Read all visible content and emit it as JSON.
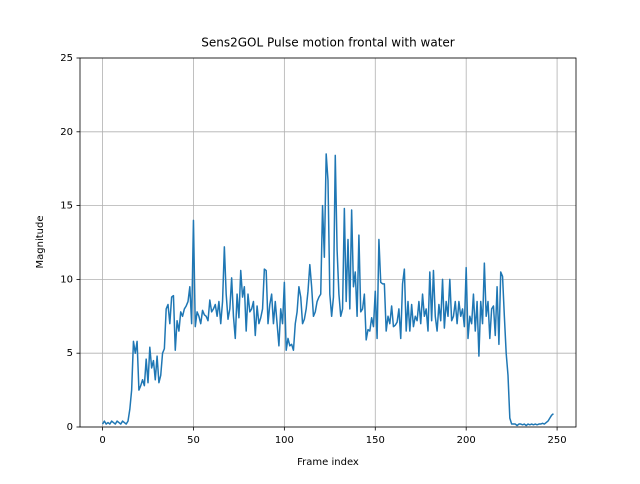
{
  "chart_data": {
    "type": "line",
    "title": "Sens2GOL Pulse motion frontal with water",
    "x_label": "Frame index",
    "y_label": "Magnitude",
    "xlim": [
      -12.4,
      260.4
    ],
    "xticks": [
      0,
      50,
      100,
      150,
      200,
      250
    ],
    "ylim": [
      0,
      25
    ],
    "yticks": [
      0,
      5,
      10,
      15,
      20,
      25
    ],
    "grid": true,
    "x": [
      0,
      1,
      2,
      3,
      4,
      5,
      6,
      7,
      8,
      9,
      10,
      11,
      12,
      13,
      14,
      15,
      16,
      17,
      18,
      19,
      20,
      21,
      22,
      23,
      24,
      25,
      26,
      27,
      28,
      29,
      30,
      31,
      32,
      33,
      34,
      35,
      36,
      37,
      38,
      39,
      40,
      41,
      42,
      43,
      44,
      45,
      46,
      47,
      48,
      49,
      50,
      51,
      52,
      53,
      54,
      55,
      56,
      57,
      58,
      59,
      60,
      61,
      62,
      63,
      64,
      65,
      66,
      67,
      68,
      69,
      70,
      71,
      72,
      73,
      74,
      75,
      76,
      77,
      78,
      79,
      80,
      81,
      82,
      83,
      84,
      85,
      86,
      87,
      88,
      89,
      90,
      91,
      92,
      93,
      94,
      95,
      96,
      97,
      98,
      99,
      100,
      101,
      102,
      103,
      104,
      105,
      106,
      107,
      108,
      109,
      110,
      111,
      112,
      113,
      114,
      115,
      116,
      117,
      118,
      119,
      120,
      121,
      122,
      123,
      124,
      125,
      126,
      127,
      128,
      129,
      130,
      131,
      132,
      133,
      134,
      135,
      136,
      137,
      138,
      139,
      140,
      141,
      142,
      143,
      144,
      145,
      146,
      147,
      148,
      149,
      150,
      151,
      152,
      153,
      154,
      155,
      156,
      157,
      158,
      159,
      160,
      161,
      162,
      163,
      164,
      165,
      166,
      167,
      168,
      169,
      170,
      171,
      172,
      173,
      174,
      175,
      176,
      177,
      178,
      179,
      180,
      181,
      182,
      183,
      184,
      185,
      186,
      187,
      188,
      189,
      190,
      191,
      192,
      193,
      194,
      195,
      196,
      197,
      198,
      199,
      200,
      201,
      202,
      203,
      204,
      205,
      206,
      207,
      208,
      209,
      210,
      211,
      212,
      213,
      214,
      215,
      216,
      217,
      218,
      219,
      220,
      221,
      222,
      223,
      224,
      225,
      226,
      227,
      228,
      229,
      230,
      231,
      232,
      233,
      234,
      235,
      236,
      237,
      238,
      239,
      240,
      241,
      242,
      243,
      244,
      245,
      246,
      247,
      248
    ],
    "series": [
      {
        "color": "#1f77b4",
        "values": [
          0.2,
          0.4,
          0.2,
          0.3,
          0.2,
          0.4,
          0.3,
          0.2,
          0.4,
          0.3,
          0.2,
          0.4,
          0.3,
          0.2,
          0.4,
          1.2,
          2.5,
          5.8,
          5.0,
          5.8,
          2.5,
          2.8,
          3.2,
          2.8,
          4.6,
          3.0,
          5.4,
          4.0,
          4.5,
          3.2,
          4.8,
          3.0,
          3.5,
          5.0,
          5.3,
          8.0,
          8.3,
          7.0,
          8.8,
          8.9,
          5.2,
          7.2,
          6.5,
          7.8,
          7.5,
          8.0,
          8.2,
          8.5,
          9.5,
          7.0,
          14.0,
          6.8,
          7.8,
          7.5,
          7.0,
          7.9,
          7.6,
          7.5,
          7.2,
          8.6,
          7.8,
          8.0,
          8.3,
          7.5,
          8.5,
          7.0,
          8.5,
          12.2,
          9.0,
          7.3,
          8.0,
          10.1,
          7.5,
          6.0,
          9.0,
          7.4,
          10.6,
          8.8,
          9.5,
          6.5,
          9.0,
          7.8,
          8.0,
          8.5,
          6.2,
          8.2,
          7.0,
          7.4,
          8.0,
          10.7,
          10.6,
          7.0,
          8.3,
          9.0,
          7.0,
          8.5,
          7.0,
          5.5,
          8.0,
          7.0,
          9.8,
          5.2,
          6.0,
          5.5,
          5.6,
          5.2,
          7.0,
          7.8,
          9.5,
          8.8,
          7.0,
          7.3,
          8.0,
          9.2,
          11.0,
          9.5,
          7.5,
          7.8,
          8.5,
          8.8,
          9.0,
          15.0,
          11.5,
          18.5,
          16.7,
          9.0,
          7.5,
          8.8,
          18.4,
          12.0,
          9.0,
          7.5,
          8.0,
          14.8,
          8.5,
          12.7,
          8.0,
          14.7,
          9.5,
          10.5,
          7.5,
          13.0,
          7.8,
          8.0,
          9.0,
          5.9,
          6.6,
          6.5,
          7.4,
          6.8,
          9.2,
          6.0,
          12.7,
          9.8,
          9.7,
          9.7,
          6.5,
          7.5,
          7.0,
          8.2,
          6.8,
          6.9,
          7.1,
          8.0,
          6.0,
          9.7,
          10.7,
          6.5,
          8.5,
          6.5,
          8.3,
          6.8,
          7.5,
          7.2,
          8.5,
          7.0,
          9.0,
          7.5,
          8.0,
          6.5,
          10.5,
          7.2,
          10.6,
          7.5,
          6.5,
          8.3,
          7.2,
          10.0,
          6.7,
          8.5,
          7.5,
          10.0,
          7.2,
          7.5,
          8.5,
          7.0,
          8.5,
          7.5,
          8.0,
          6.8,
          10.8,
          6.0,
          7.5,
          7.0,
          9.0,
          6.5,
          8.5,
          4.8,
          8.5,
          7.0,
          11.1,
          7.5,
          8.5,
          6.0,
          8.0,
          8.2,
          6.2,
          9.5,
          5.6,
          10.5,
          10.2,
          7.5,
          5.0,
          3.5,
          0.6,
          0.2,
          0.2,
          0.2,
          0.1,
          0.2,
          0.2,
          0.15,
          0.2,
          0.1,
          0.2,
          0.15,
          0.2,
          0.15,
          0.2,
          0.15,
          0.2,
          0.2,
          0.25,
          0.2,
          0.3,
          0.4,
          0.6,
          0.8,
          0.9
        ]
      }
    ]
  }
}
